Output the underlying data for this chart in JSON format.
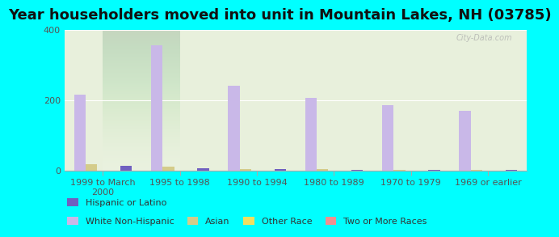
{
  "title": "Year householders moved into unit in Mountain Lakes, NH (03785)",
  "background_color": "#00FFFF",
  "plot_bg_gradient_top": "#f0f5e8",
  "plot_bg_gradient_bottom": "#ffffff",
  "categories": [
    "1999 to March\n2000",
    "1995 to 1998",
    "1990 to 1994",
    "1980 to 1989",
    "1970 to 1979",
    "1969 or earlier"
  ],
  "series": {
    "White Non-Hispanic": {
      "values": [
        215,
        355,
        240,
        205,
        185,
        170
      ],
      "color": "#c9b8e8"
    },
    "Asian": {
      "values": [
        18,
        10,
        4,
        3,
        2,
        2
      ],
      "color": "#d4cc8a"
    },
    "Other Race": {
      "values": [
        0,
        0,
        0,
        0,
        0,
        0
      ],
      "color": "#f0e060"
    },
    "Two or More Races": {
      "values": [
        0,
        0,
        0,
        0,
        0,
        0
      ],
      "color": "#f09090"
    },
    "Hispanic or Latino": {
      "values": [
        12,
        5,
        3,
        2,
        2,
        2
      ],
      "color": "#7060c0"
    }
  },
  "ylim": [
    0,
    400
  ],
  "yticks": [
    0,
    200,
    400
  ],
  "bar_width": 0.15,
  "title_fontsize": 13,
  "axis_fontsize": 8,
  "legend_fontsize": 8
}
